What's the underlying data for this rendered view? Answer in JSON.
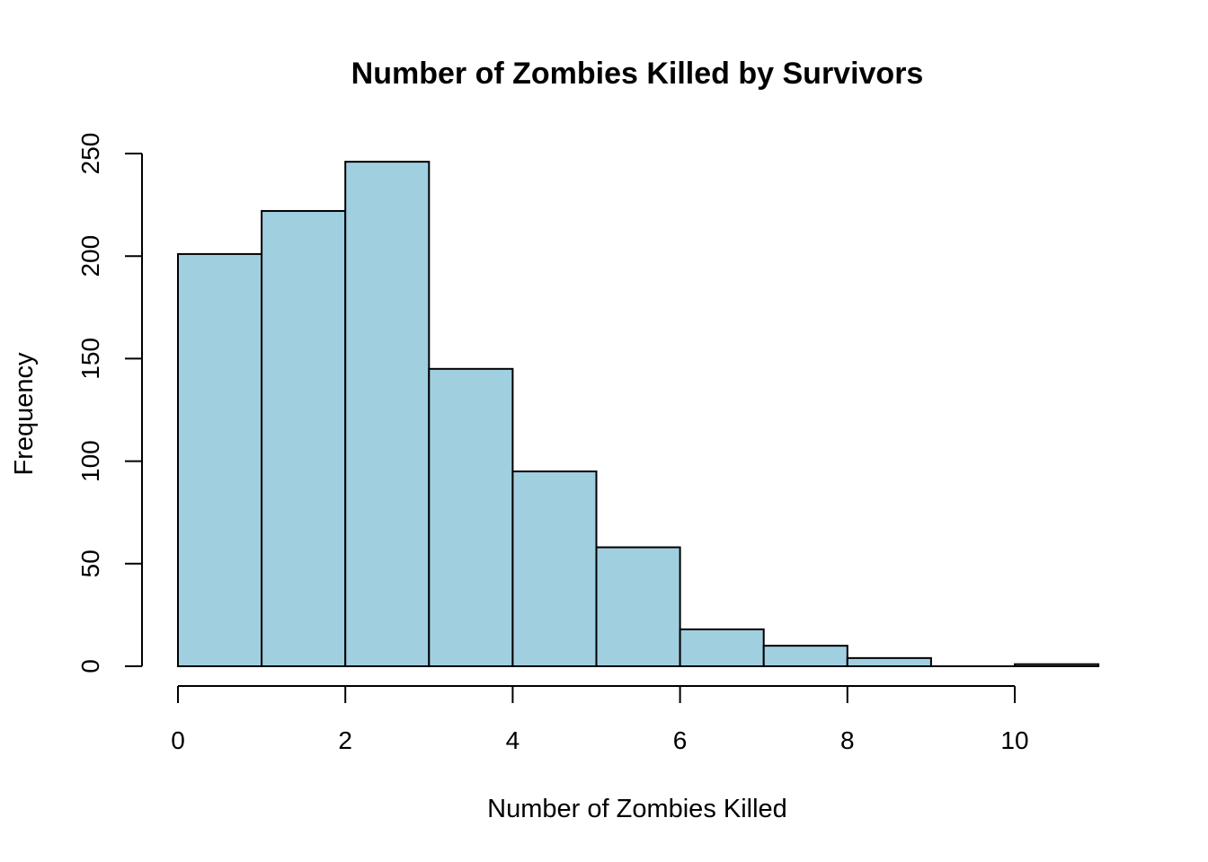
{
  "chart_data": {
    "type": "bar",
    "subtype": "histogram",
    "title": "Number of Zombies Killed by Survivors",
    "xlabel": "Number of Zombies Killed",
    "ylabel": "Frequency",
    "bins": [
      {
        "start": 0,
        "end": 1,
        "count": 201
      },
      {
        "start": 1,
        "end": 2,
        "count": 222
      },
      {
        "start": 2,
        "end": 3,
        "count": 246
      },
      {
        "start": 3,
        "end": 4,
        "count": 145
      },
      {
        "start": 4,
        "end": 5,
        "count": 95
      },
      {
        "start": 5,
        "end": 6,
        "count": 58
      },
      {
        "start": 6,
        "end": 7,
        "count": 18
      },
      {
        "start": 7,
        "end": 8,
        "count": 10
      },
      {
        "start": 8,
        "end": 9,
        "count": 4
      },
      {
        "start": 9,
        "end": 10,
        "count": 0
      },
      {
        "start": 10,
        "end": 11,
        "count": 1
      }
    ],
    "xlim": [
      0,
      11
    ],
    "ylim": [
      0,
      250
    ],
    "x_ticks": [
      0,
      2,
      4,
      6,
      8,
      10
    ],
    "y_ticks": [
      0,
      50,
      100,
      150,
      200,
      250
    ],
    "bar_color": "#a0cfe0",
    "grid": false,
    "legend": "none"
  }
}
